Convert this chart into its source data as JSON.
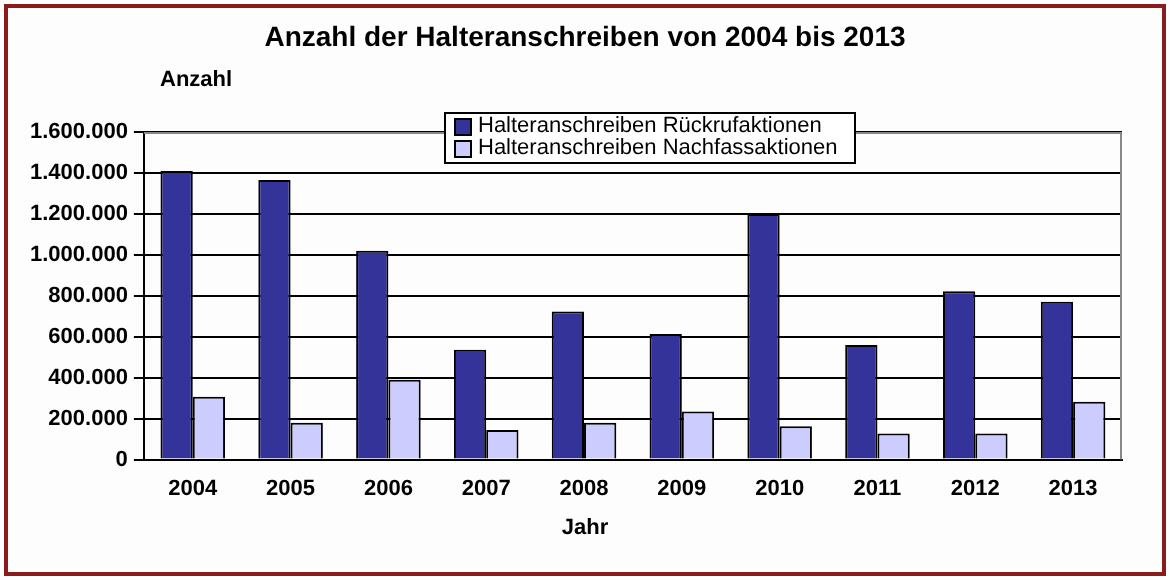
{
  "chart_data": {
    "type": "bar",
    "title": "Anzahl der Halteranschreiben von 2004 bis 2013",
    "xlabel": "Jahr",
    "ylabel": "Anzahl",
    "categories": [
      "2004",
      "2005",
      "2006",
      "2007",
      "2008",
      "2009",
      "2010",
      "2011",
      "2012",
      "2013"
    ],
    "series": [
      {
        "name": "Halteranschreiben Rückrufaktionen",
        "color": "#333399",
        "values": [
          1410000,
          1365000,
          1020000,
          536000,
          723000,
          614000,
          1200000,
          560000,
          822000,
          771000
        ]
      },
      {
        "name": "Halteranschreiben Nachfassaktionen",
        "color": "#ccccff",
        "values": [
          307000,
          180000,
          390000,
          145000,
          180000,
          235000,
          163000,
          127000,
          127000,
          283000
        ]
      }
    ],
    "ylim": [
      0,
      1600000
    ],
    "yticks": [
      {
        "value": 0,
        "label": "0"
      },
      {
        "value": 200000,
        "label": "200.000"
      },
      {
        "value": 400000,
        "label": "400.000"
      },
      {
        "value": 600000,
        "label": "600.000"
      },
      {
        "value": 800000,
        "label": "800.000"
      },
      {
        "value": 1000000,
        "label": "1.000.000"
      },
      {
        "value": 1200000,
        "label": "1.200.000"
      },
      {
        "value": 1400000,
        "label": "1.400.000"
      },
      {
        "value": 1600000,
        "label": "1.600.000"
      }
    ],
    "grid": "y",
    "legend": "top"
  }
}
